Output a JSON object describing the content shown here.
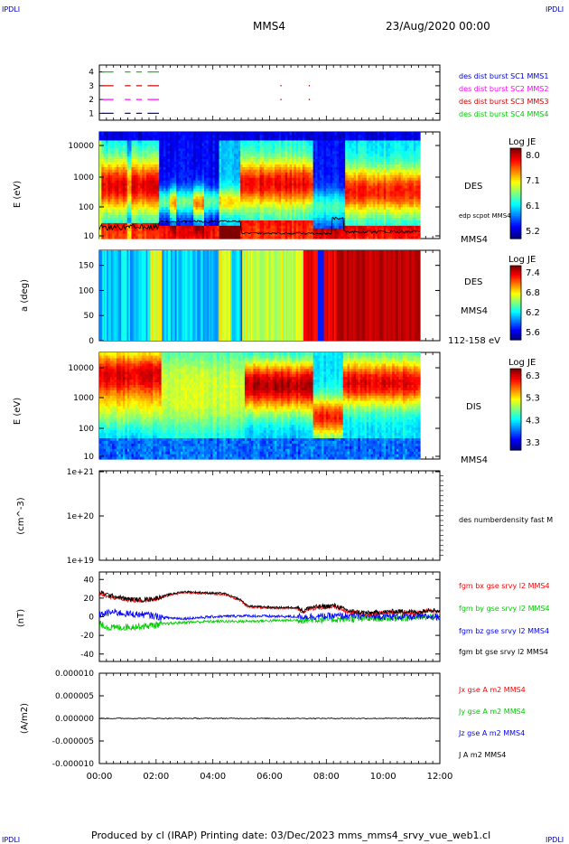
{
  "header": {
    "corner_tl": "IPDLI",
    "corner_tr": "IPDLI",
    "corner_bl": "IPDLI",
    "corner_br": "IPDLI",
    "spacecraft": "MMS4",
    "date": "23/Aug/2020 00:00"
  },
  "footer": {
    "text": "Produced by cl (IRAP)   Printing date: 03/Dec/2023   mms_mms4_srvy_vue_web1.cl"
  },
  "colors": {
    "red": "#ff0000",
    "green": "#00cc00",
    "blue": "#0000ff",
    "magenta": "#ff00ff",
    "black": "#000000"
  },
  "chart_data": [
    {
      "type": "line",
      "id": "burst_availability",
      "yticks": [
        "1",
        "2",
        "3",
        "4"
      ],
      "ylim": [
        0.5,
        4.5
      ],
      "series": [
        {
          "name": "des dist burst SC1 MMS1",
          "row": 1,
          "color": "#0000cc",
          "segments": [
            [
              0.1,
              0.5
            ],
            [
              0.9,
              1.1
            ],
            [
              1.3,
              1.5
            ],
            [
              1.7,
              2.1
            ]
          ]
        },
        {
          "name": "des dist burst SC2 MMS2",
          "row": 2,
          "color": "#ff00ff",
          "segments": [
            [
              0.1,
              0.5
            ],
            [
              0.9,
              1.1
            ],
            [
              1.3,
              1.5
            ],
            [
              1.7,
              2.1
            ]
          ]
        },
        {
          "name": "des dist burst SC3 MMS3",
          "row": 3,
          "color": "#cc0000",
          "segments": [
            [
              0.1,
              0.5
            ],
            [
              0.9,
              1.1
            ],
            [
              1.3,
              1.5
            ],
            [
              1.7,
              2.1
            ]
          ]
        },
        {
          "name": "des dist burst SC4 MMS4",
          "row": 4,
          "color": "#00cc00",
          "segments": [
            [
              0.1,
              0.5
            ],
            [
              0.9,
              1.1
            ],
            [
              1.3,
              1.5
            ],
            [
              1.7,
              2.1
            ]
          ]
        }
      ],
      "dots": [
        [
          6.4,
          3
        ],
        [
          7.4,
          3
        ],
        [
          6.4,
          2
        ],
        [
          7.4,
          2
        ]
      ]
    },
    {
      "type": "heatmap",
      "id": "des_energy",
      "ylabel": "E (eV)",
      "instrument": "DES",
      "yticks": [
        "10",
        "100",
        "1000",
        "10000"
      ],
      "colorbar": {
        "label": "Log JE",
        "ticks": [
          "8.0",
          "7.1",
          "6.1",
          "5.2"
        ],
        "min": 5.2,
        "max": 8.0
      },
      "overlay_label": "edp scpot MMS4",
      "sc_label": "MMS4"
    },
    {
      "type": "heatmap",
      "id": "des_pitch",
      "ylabel": "a (deg)",
      "instrument": "DES",
      "yticks": [
        "0",
        "50",
        "100",
        "150"
      ],
      "colorbar": {
        "label": "Log JE",
        "ticks": [
          "7.4",
          "6.8",
          "6.2",
          "5.6"
        ],
        "min": 5.6,
        "max": 7.4
      },
      "sc_label": "MMS4",
      "energy_range": "112-158 eV"
    },
    {
      "type": "heatmap",
      "id": "dis_energy",
      "ylabel": "E (eV)",
      "instrument": "DIS",
      "yticks": [
        "10",
        "100",
        "1000",
        "10000"
      ],
      "colorbar": {
        "label": "Log JE",
        "ticks": [
          "6.3",
          "5.3",
          "4.3",
          "3.3"
        ],
        "min": 3.3,
        "max": 6.3
      },
      "sc_label": "MMS4"
    },
    {
      "type": "line",
      "id": "density",
      "ylabel": "(cm^-3)",
      "yticks": [
        "1e+19",
        "1e+20",
        "1e+21"
      ],
      "series": [
        {
          "name": "des numberdensity fast M"
        }
      ]
    },
    {
      "type": "line",
      "id": "magnetic_field",
      "ylabel": "(nT)",
      "yticks": [
        "-40",
        "-20",
        "0",
        "20",
        "40"
      ],
      "ylim": [
        -48,
        48
      ],
      "series": [
        {
          "name": "fgm bx gse srvy l2 MMS4",
          "color": "#ff0000"
        },
        {
          "name": "fgm by gse srvy l2 MMS4",
          "color": "#00cc00"
        },
        {
          "name": "fgm bz gse srvy l2 MMS4",
          "color": "#0000ff"
        },
        {
          "name": "fgm bt gse srvy l2 MMS4",
          "color": "#000000"
        }
      ],
      "bt_profile": [
        [
          0,
          26
        ],
        [
          0.5,
          22
        ],
        [
          1.0,
          19
        ],
        [
          1.5,
          18
        ],
        [
          2.0,
          20
        ],
        [
          2.6,
          25
        ],
        [
          3.0,
          27
        ],
        [
          3.6,
          26
        ],
        [
          4.4,
          25
        ],
        [
          5.0,
          18
        ],
        [
          5.2,
          12
        ],
        [
          5.5,
          11
        ],
        [
          6.2,
          10
        ],
        [
          7.0,
          10
        ],
        [
          7.2,
          6
        ],
        [
          7.4,
          10
        ],
        [
          8.3,
          12
        ],
        [
          8.8,
          6
        ],
        [
          9.5,
          4
        ],
        [
          10.5,
          6
        ],
        [
          11.3,
          5
        ],
        [
          11.6,
          8
        ],
        [
          12,
          6
        ]
      ],
      "by_profile": [
        [
          0,
          -8
        ],
        [
          0.4,
          -12
        ],
        [
          1.0,
          -11
        ],
        [
          1.6,
          -10
        ],
        [
          2.2,
          -8
        ],
        [
          3.0,
          -6
        ],
        [
          4.0,
          -5
        ],
        [
          5.0,
          -5
        ],
        [
          6.5,
          -4
        ],
        [
          8.0,
          -3
        ],
        [
          9.5,
          -2
        ],
        [
          11.0,
          -1
        ],
        [
          12,
          0
        ]
      ],
      "bz_profile": [
        [
          0,
          2
        ],
        [
          0.5,
          5
        ],
        [
          1.0,
          3
        ],
        [
          1.7,
          2
        ],
        [
          2.3,
          -1
        ],
        [
          3.0,
          -2
        ],
        [
          4.0,
          0
        ],
        [
          5.0,
          1
        ],
        [
          7.0,
          0
        ],
        [
          9.0,
          1
        ],
        [
          11.0,
          0
        ],
        [
          12,
          0
        ]
      ]
    },
    {
      "type": "line",
      "id": "current_density",
      "ylabel": "(A/m2)",
      "yticks": [
        "0.000010",
        "0.000005",
        "0.000000",
        "-0.000005",
        "-0.000010"
      ],
      "ylim": [
        -1e-05,
        1e-05
      ],
      "series": [
        {
          "name": "Jx gse A m2 MMS4",
          "color": "#ff0000"
        },
        {
          "name": "Jy gse A m2 MMS4",
          "color": "#00cc00"
        },
        {
          "name": "Jz gse A m2 MMS4",
          "color": "#0000ff"
        },
        {
          "name": "J A m2 MMS4",
          "color": "#000000"
        }
      ]
    }
  ],
  "x_axis": {
    "ticks": [
      "00:00",
      "02:00",
      "04:00",
      "06:00",
      "08:00",
      "10:00",
      "12:00"
    ],
    "xlim_hours": [
      0,
      12
    ],
    "data_end_hours": 11.3
  }
}
